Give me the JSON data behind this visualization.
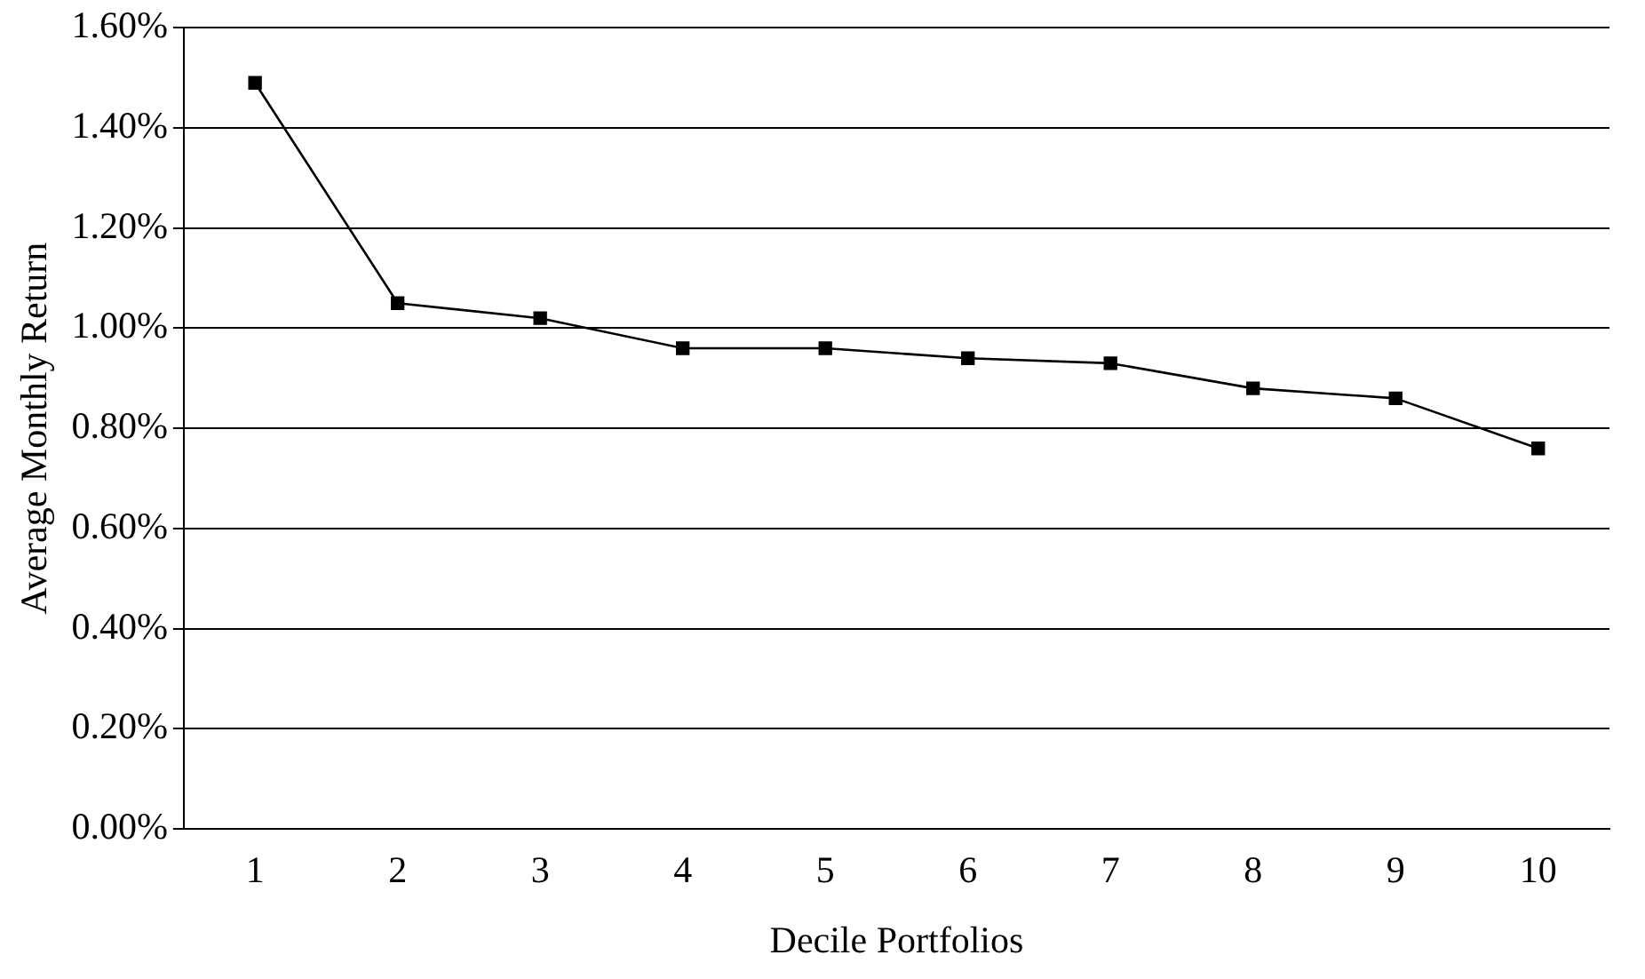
{
  "chart_data": {
    "type": "line",
    "xlabel": "Decile Portfolios",
    "ylabel": "Average Monthly Return",
    "categories": [
      "1",
      "2",
      "3",
      "4",
      "5",
      "6",
      "7",
      "8",
      "9",
      "10"
    ],
    "series": [
      {
        "color": "#000000",
        "values": [
          1.49,
          1.05,
          1.02,
          0.96,
          0.96,
          0.94,
          0.93,
          0.88,
          0.86,
          0.76
        ]
      }
    ],
    "ylim": [
      0,
      1.6
    ],
    "yticks": [
      {
        "value": 0,
        "label": "0.00%"
      },
      {
        "value": 0.2,
        "label": "0.20%"
      },
      {
        "value": 0.4,
        "label": "0.40%"
      },
      {
        "value": 0.6,
        "label": "0.60%"
      },
      {
        "value": 0.8,
        "label": "0.80%"
      },
      {
        "value": 1.0,
        "label": "1.00%"
      },
      {
        "value": 1.2,
        "label": "1.20%"
      },
      {
        "value": 1.4,
        "label": "1.40%"
      },
      {
        "value": 1.6,
        "label": "1.60%"
      }
    ],
    "grid": "y",
    "legend": false,
    "marker": "square",
    "line_style": "solid"
  }
}
